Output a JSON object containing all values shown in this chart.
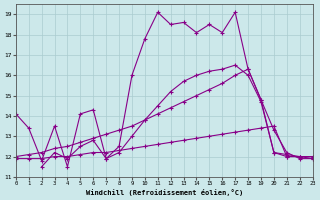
{
  "title": "",
  "xlabel": "Windchill (Refroidissement éolien,°C)",
  "ylabel": "",
  "xlim": [
    0,
    23
  ],
  "ylim": [
    11,
    19.5
  ],
  "xticks": [
    0,
    1,
    2,
    3,
    4,
    5,
    6,
    7,
    8,
    9,
    10,
    11,
    12,
    13,
    14,
    15,
    16,
    17,
    18,
    19,
    20,
    21,
    22,
    23
  ],
  "yticks": [
    11,
    12,
    13,
    14,
    15,
    16,
    17,
    18,
    19
  ],
  "bg_color": "#cce8ea",
  "line_color": "#880088",
  "grid_color": "#aacccf",
  "series": [
    {
      "x": [
        0,
        1,
        2,
        3,
        4,
        5,
        6,
        7,
        8,
        9,
        10,
        11,
        12,
        13,
        14,
        15,
        16,
        17,
        18,
        19,
        20,
        21,
        22,
        23
      ],
      "y": [
        14.1,
        13.4,
        11.8,
        13.5,
        11.5,
        14.1,
        14.3,
        11.9,
        12.5,
        16.0,
        17.8,
        19.1,
        18.5,
        18.6,
        18.1,
        18.5,
        18.1,
        19.1,
        16.3,
        14.8,
        13.3,
        12.2,
        11.9,
        11.9
      ]
    },
    {
      "x": [
        0,
        1,
        2,
        3,
        4,
        5,
        6,
        7,
        8,
        9,
        10,
        11,
        12,
        13,
        14,
        15,
        16,
        17,
        18,
        19,
        20,
        21,
        22,
        23
      ],
      "y": [
        12.0,
        12.1,
        12.2,
        12.4,
        12.5,
        12.7,
        12.9,
        13.1,
        13.3,
        13.5,
        13.8,
        14.1,
        14.4,
        14.7,
        15.0,
        15.3,
        15.6,
        16.0,
        16.3,
        14.8,
        12.2,
        12.0,
        12.0,
        12.0
      ]
    },
    {
      "x": [
        0,
        1,
        2,
        3,
        4,
        5,
        6,
        7,
        8,
        9,
        10,
        11,
        12,
        13,
        14,
        15,
        16,
        17,
        18,
        19,
        20,
        21,
        22,
        23
      ],
      "y": [
        11.9,
        11.9,
        11.9,
        12.0,
        12.0,
        12.1,
        12.2,
        12.2,
        12.3,
        12.4,
        12.5,
        12.6,
        12.7,
        12.8,
        12.9,
        13.0,
        13.1,
        13.2,
        13.3,
        13.4,
        13.5,
        12.0,
        12.0,
        11.9
      ]
    },
    {
      "x": [
        2,
        3,
        4,
        5,
        6,
        7,
        8,
        9,
        10,
        11,
        12,
        13,
        14,
        15,
        16,
        17,
        18,
        19,
        20,
        21,
        22,
        23
      ],
      "y": [
        11.5,
        12.2,
        11.9,
        12.5,
        12.8,
        11.9,
        12.2,
        13.0,
        13.8,
        14.5,
        15.2,
        15.7,
        16.0,
        16.2,
        16.3,
        16.5,
        16.0,
        14.7,
        12.2,
        12.1,
        12.0,
        12.0
      ]
    }
  ]
}
